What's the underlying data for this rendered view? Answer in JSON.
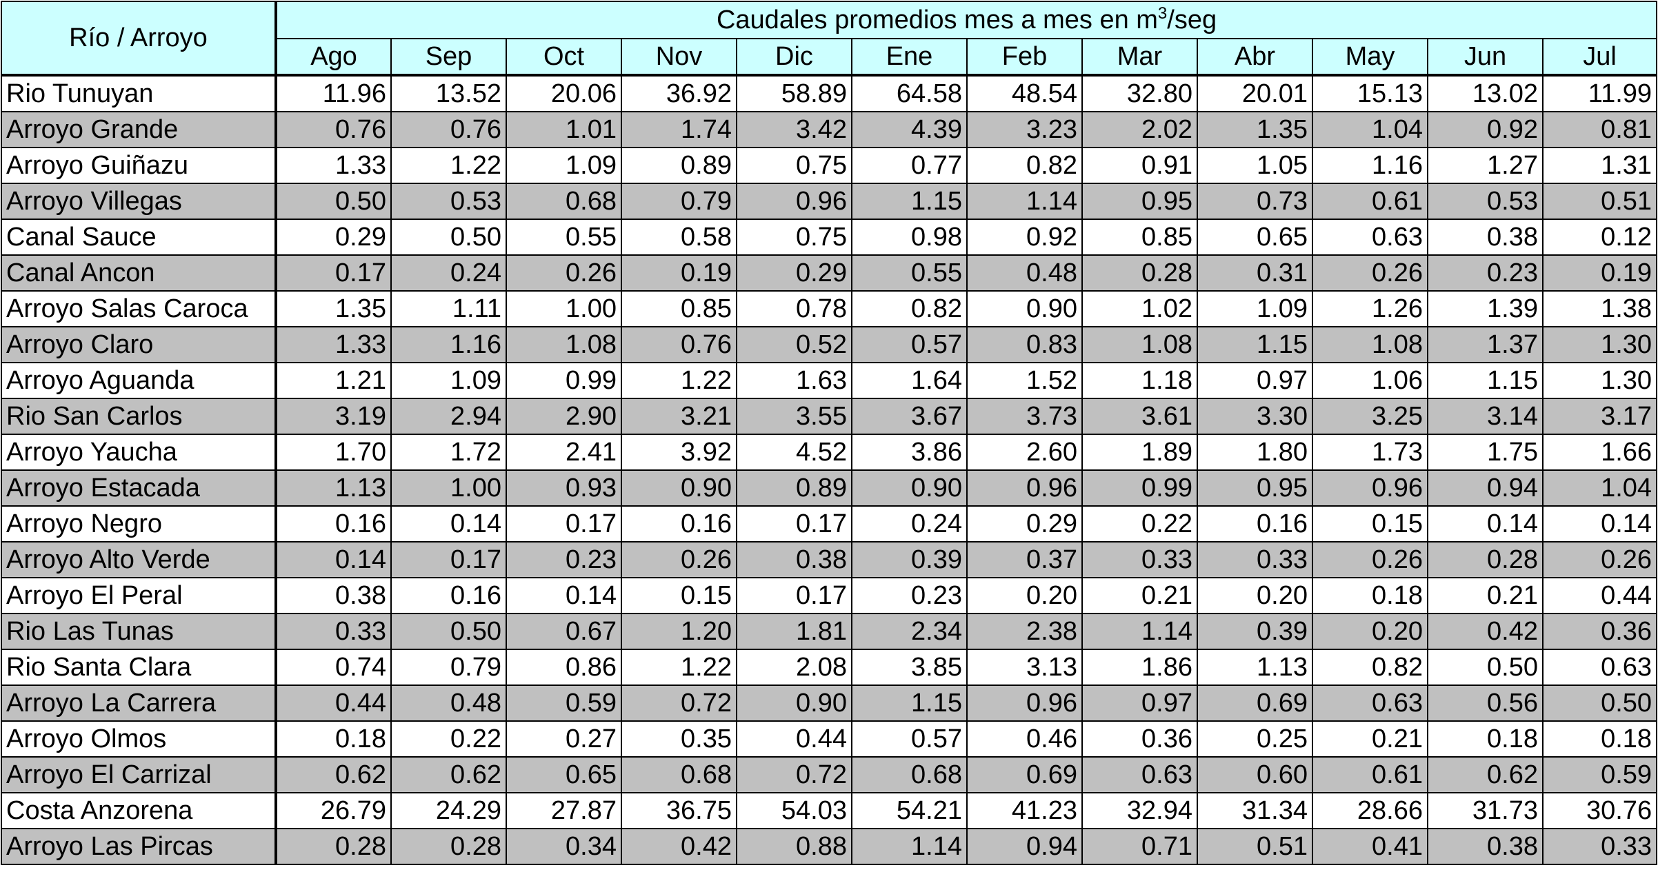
{
  "table": {
    "corner_label": "Río / Arroyo",
    "title_pre": "Caudales promedios mes a mes en m",
    "title_sup": "3",
    "title_post": "/seg",
    "months": [
      "Ago",
      "Sep",
      "Oct",
      "Nov",
      "Dic",
      "Ene",
      "Feb",
      "Mar",
      "Abr",
      "May",
      "Jun",
      "Jul"
    ],
    "rows": [
      {
        "name": "Rio Tunuyan",
        "values": [
          "11.96",
          "13.52",
          "20.06",
          "36.92",
          "58.89",
          "64.58",
          "48.54",
          "32.80",
          "20.01",
          "15.13",
          "13.02",
          "11.99"
        ]
      },
      {
        "name": "Arroyo Grande",
        "values": [
          "0.76",
          "0.76",
          "1.01",
          "1.74",
          "3.42",
          "4.39",
          "3.23",
          "2.02",
          "1.35",
          "1.04",
          "0.92",
          "0.81"
        ]
      },
      {
        "name": "Arroyo Guiñazu",
        "values": [
          "1.33",
          "1.22",
          "1.09",
          "0.89",
          "0.75",
          "0.77",
          "0.82",
          "0.91",
          "1.05",
          "1.16",
          "1.27",
          "1.31"
        ]
      },
      {
        "name": "Arroyo Villegas",
        "values": [
          "0.50",
          "0.53",
          "0.68",
          "0.79",
          "0.96",
          "1.15",
          "1.14",
          "0.95",
          "0.73",
          "0.61",
          "0.53",
          "0.51"
        ]
      },
      {
        "name": "Canal Sauce",
        "values": [
          "0.29",
          "0.50",
          "0.55",
          "0.58",
          "0.75",
          "0.98",
          "0.92",
          "0.85",
          "0.65",
          "0.63",
          "0.38",
          "0.12"
        ]
      },
      {
        "name": "Canal Ancon",
        "values": [
          "0.17",
          "0.24",
          "0.26",
          "0.19",
          "0.29",
          "0.55",
          "0.48",
          "0.28",
          "0.31",
          "0.26",
          "0.23",
          "0.19"
        ]
      },
      {
        "name": "Arroyo Salas Caroca",
        "values": [
          "1.35",
          "1.11",
          "1.00",
          "0.85",
          "0.78",
          "0.82",
          "0.90",
          "1.02",
          "1.09",
          "1.26",
          "1.39",
          "1.38"
        ]
      },
      {
        "name": "Arroyo Claro",
        "values": [
          "1.33",
          "1.16",
          "1.08",
          "0.76",
          "0.52",
          "0.57",
          "0.83",
          "1.08",
          "1.15",
          "1.08",
          "1.37",
          "1.30"
        ]
      },
      {
        "name": "Arroyo Aguanda",
        "values": [
          "1.21",
          "1.09",
          "0.99",
          "1.22",
          "1.63",
          "1.64",
          "1.52",
          "1.18",
          "0.97",
          "1.06",
          "1.15",
          "1.30"
        ]
      },
      {
        "name": "Rio San Carlos",
        "values": [
          "3.19",
          "2.94",
          "2.90",
          "3.21",
          "3.55",
          "3.67",
          "3.73",
          "3.61",
          "3.30",
          "3.25",
          "3.14",
          "3.17"
        ]
      },
      {
        "name": "Arroyo Yaucha",
        "values": [
          "1.70",
          "1.72",
          "2.41",
          "3.92",
          "4.52",
          "3.86",
          "2.60",
          "1.89",
          "1.80",
          "1.73",
          "1.75",
          "1.66"
        ]
      },
      {
        "name": "Arroyo Estacada",
        "values": [
          "1.13",
          "1.00",
          "0.93",
          "0.90",
          "0.89",
          "0.90",
          "0.96",
          "0.99",
          "0.95",
          "0.96",
          "0.94",
          "1.04"
        ]
      },
      {
        "name": "Arroyo Negro",
        "values": [
          "0.16",
          "0.14",
          "0.17",
          "0.16",
          "0.17",
          "0.24",
          "0.29",
          "0.22",
          "0.16",
          "0.15",
          "0.14",
          "0.14"
        ]
      },
      {
        "name": "Arroyo Alto Verde",
        "values": [
          "0.14",
          "0.17",
          "0.23",
          "0.26",
          "0.38",
          "0.39",
          "0.37",
          "0.33",
          "0.33",
          "0.26",
          "0.28",
          "0.26"
        ]
      },
      {
        "name": "Arroyo El Peral",
        "values": [
          "0.38",
          "0.16",
          "0.14",
          "0.15",
          "0.17",
          "0.23",
          "0.20",
          "0.21",
          "0.20",
          "0.18",
          "0.21",
          "0.44"
        ]
      },
      {
        "name": "Rio Las Tunas",
        "values": [
          "0.33",
          "0.50",
          "0.67",
          "1.20",
          "1.81",
          "2.34",
          "2.38",
          "1.14",
          "0.39",
          "0.20",
          "0.42",
          "0.36"
        ]
      },
      {
        "name": "Rio Santa Clara",
        "values": [
          "0.74",
          "0.79",
          "0.86",
          "1.22",
          "2.08",
          "3.85",
          "3.13",
          "1.86",
          "1.13",
          "0.82",
          "0.50",
          "0.63"
        ]
      },
      {
        "name": "Arroyo La Carrera",
        "values": [
          "0.44",
          "0.48",
          "0.59",
          "0.72",
          "0.90",
          "1.15",
          "0.96",
          "0.97",
          "0.69",
          "0.63",
          "0.56",
          "0.50"
        ]
      },
      {
        "name": "Arroyo Olmos",
        "values": [
          "0.18",
          "0.22",
          "0.27",
          "0.35",
          "0.44",
          "0.57",
          "0.46",
          "0.36",
          "0.25",
          "0.21",
          "0.18",
          "0.18"
        ]
      },
      {
        "name": "Arroyo El Carrizal",
        "values": [
          "0.62",
          "0.62",
          "0.65",
          "0.68",
          "0.72",
          "0.68",
          "0.69",
          "0.63",
          "0.60",
          "0.61",
          "0.62",
          "0.59"
        ]
      },
      {
        "name": "Costa Anzorena",
        "values": [
          "26.79",
          "24.29",
          "27.87",
          "36.75",
          "54.03",
          "54.21",
          "41.23",
          "32.94",
          "31.34",
          "28.66",
          "31.73",
          "30.76"
        ]
      },
      {
        "name": "Arroyo Las Pircas",
        "values": [
          "0.28",
          "0.28",
          "0.34",
          "0.42",
          "0.88",
          "1.14",
          "0.94",
          "0.71",
          "0.51",
          "0.41",
          "0.38",
          "0.33"
        ]
      }
    ],
    "colors": {
      "header_bg": "#ccffff",
      "alt_row_bg": "#c0c0c0",
      "row_bg": "#ffffff",
      "border": "#000000"
    }
  }
}
